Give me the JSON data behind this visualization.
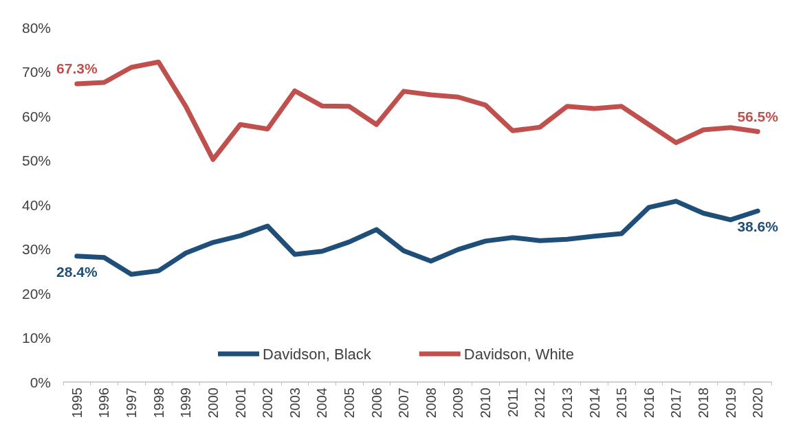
{
  "chart_data": {
    "type": "line",
    "categories": [
      "1995",
      "1996",
      "1997",
      "1998",
      "1999",
      "2000",
      "2001",
      "2002",
      "2003",
      "2004",
      "2005",
      "2006",
      "2007",
      "2008",
      "2009",
      "2010",
      "2011",
      "2012",
      "2013",
      "2014",
      "2015",
      "2016",
      "2017",
      "2018",
      "2019",
      "2020"
    ],
    "series": [
      {
        "name": "Davidson, Black",
        "color": "#1f4e79",
        "values": [
          28.4,
          28.1,
          24.3,
          25.1,
          29.1,
          31.5,
          33.0,
          35.2,
          28.8,
          29.5,
          31.6,
          34.4,
          29.6,
          27.3,
          29.9,
          31.8,
          32.6,
          31.9,
          32.2,
          32.9,
          33.5,
          39.4,
          40.8,
          38.1,
          36.6,
          38.6
        ],
        "value_labels": [
          "28.4%",
          null,
          null,
          null,
          null,
          null,
          null,
          null,
          null,
          null,
          null,
          null,
          null,
          null,
          null,
          null,
          null,
          null,
          null,
          null,
          null,
          null,
          null,
          null,
          null,
          "38.6%"
        ]
      },
      {
        "name": "Davidson, White",
        "color": "#c0504d",
        "values": [
          67.3,
          67.6,
          71.0,
          72.2,
          62.2,
          50.2,
          58.1,
          57.1,
          65.7,
          62.3,
          62.2,
          58.1,
          65.6,
          64.8,
          64.3,
          62.5,
          56.7,
          57.5,
          62.2,
          61.7,
          62.2,
          58.1,
          54.0,
          56.9,
          57.4,
          56.5
        ],
        "value_labels": [
          "67.3%",
          null,
          null,
          null,
          null,
          null,
          null,
          null,
          null,
          null,
          null,
          null,
          null,
          null,
          null,
          null,
          null,
          null,
          null,
          null,
          null,
          null,
          null,
          null,
          null,
          "56.5%"
        ]
      }
    ],
    "ylim": [
      0,
      80
    ],
    "yticks": [
      {
        "value": 0,
        "label": "0%"
      },
      {
        "value": 10,
        "label": "10%"
      },
      {
        "value": 20,
        "label": "20%"
      },
      {
        "value": 30,
        "label": "30%"
      },
      {
        "value": 40,
        "label": "40%"
      },
      {
        "value": 50,
        "label": "50%"
      },
      {
        "value": 60,
        "label": "60%"
      },
      {
        "value": 70,
        "label": "70%"
      },
      {
        "value": 80,
        "label": "80%"
      }
    ],
    "grid": false,
    "legend": "bottom",
    "marker": "none",
    "line_style": "solid"
  }
}
